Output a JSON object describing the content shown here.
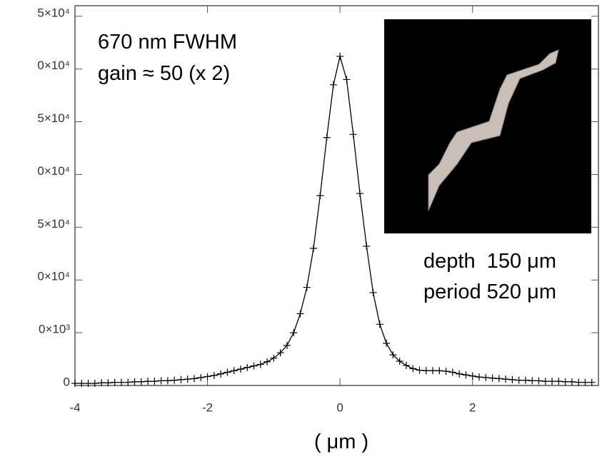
{
  "chart_data": {
    "type": "line",
    "annotations": [
      "670 nm FWHM",
      "gain ≈ 50 (x 2)",
      "depth  150 μm",
      "period 520 μm"
    ],
    "x_label": "( μm )",
    "x": [
      -4.0,
      -3.9,
      -3.8,
      -3.7,
      -3.6,
      -3.5,
      -3.4,
      -3.3,
      -3.2,
      -3.1,
      -3.0,
      -2.9,
      -2.8,
      -2.7,
      -2.6,
      -2.5,
      -2.4,
      -2.3,
      -2.2,
      -2.1,
      -2.0,
      -1.9,
      -1.8,
      -1.7,
      -1.6,
      -1.5,
      -1.4,
      -1.3,
      -1.2,
      -1.1,
      -1.0,
      -0.9,
      -0.8,
      -0.7,
      -0.6,
      -0.5,
      -0.4,
      -0.3,
      -0.2,
      -0.1,
      0.0,
      0.1,
      0.2,
      0.3,
      0.4,
      0.5,
      0.6,
      0.7,
      0.8,
      0.9,
      1.0,
      1.1,
      1.2,
      1.3,
      1.4,
      1.5,
      1.6,
      1.7,
      1.8,
      1.9,
      2.0,
      2.1,
      2.2,
      2.3,
      2.4,
      2.5,
      2.6,
      2.7,
      2.8,
      2.9,
      3.0,
      3.1,
      3.2,
      3.3,
      3.4,
      3.5,
      3.6,
      3.7,
      3.8
    ],
    "series": [
      {
        "name": null,
        "color": "#000000",
        "values": [
          200,
          200,
          200,
          200,
          250,
          250,
          300,
          300,
          300,
          350,
          350,
          400,
          400,
          450,
          450,
          500,
          550,
          600,
          650,
          750,
          850,
          950,
          1100,
          1250,
          1400,
          1550,
          1700,
          1850,
          2000,
          2250,
          2600,
          3100,
          3800,
          5000,
          6800,
          9300,
          13000,
          18000,
          23500,
          28500,
          31200,
          29000,
          23800,
          18200,
          13200,
          8800,
          5800,
          4000,
          2900,
          2300,
          1900,
          1600,
          1450,
          1400,
          1400,
          1400,
          1350,
          1250,
          1100,
          1000,
          900,
          800,
          750,
          700,
          650,
          600,
          550,
          500,
          500,
          450,
          450,
          400,
          400,
          400,
          350,
          350,
          300,
          300,
          300
        ]
      }
    ],
    "xlim": [
      -4,
      3.9
    ],
    "ylim": [
      0,
      36000
    ],
    "xticks": [
      -4,
      -2,
      0,
      2
    ],
    "yticks": [
      {
        "value": 0,
        "label": "0"
      },
      {
        "value": 5000,
        "label": "0×10³"
      },
      {
        "value": 10000,
        "label": "0×10⁴"
      },
      {
        "value": 15000,
        "label": "5×10⁴"
      },
      {
        "value": 20000,
        "label": "0×10⁴"
      },
      {
        "value": 25000,
        "label": "5×10⁴"
      },
      {
        "value": 30000,
        "label": "0×10⁴"
      },
      {
        "value": 35000,
        "label": "5×10⁴"
      }
    ]
  }
}
